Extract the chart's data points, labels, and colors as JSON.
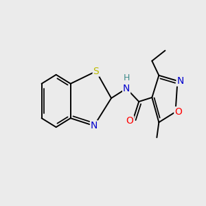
{
  "background_color": "#ebebeb",
  "figsize": [
    3.0,
    3.0
  ],
  "dpi": 100,
  "atom_colors": {
    "C": "#000000",
    "N": "#0000cc",
    "O": "#ff0000",
    "S": "#bbbb00",
    "H": "#3d8a8a"
  },
  "bond_color": "#000000",
  "bond_lw": 1.4,
  "font_size": 10
}
